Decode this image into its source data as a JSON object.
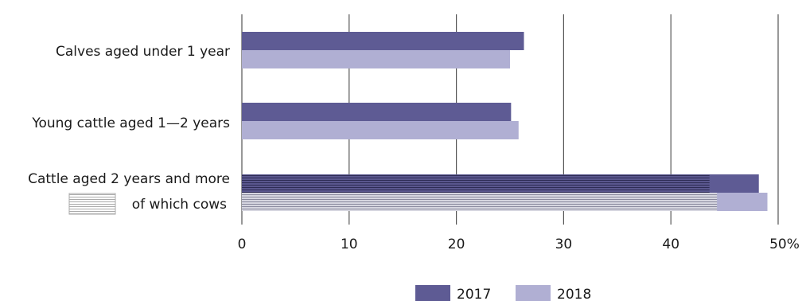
{
  "chart_data": {
    "type": "bar",
    "orientation": "horizontal",
    "categories": [
      "Calves aged under 1 year",
      "Young cattle aged 1—2 years",
      "Cattle aged 2 years and more"
    ],
    "series": [
      {
        "name": "2017",
        "values": [
          26.3,
          25.1,
          48.2
        ]
      },
      {
        "name": "2018",
        "values": [
          25.0,
          25.8,
          49.0
        ]
      }
    ],
    "sub_series": {
      "label": "of which cows",
      "category": "Cattle aged 2 years and more",
      "values": [
        43.6,
        44.3
      ]
    },
    "x_ticks": [
      "0",
      "10",
      "20",
      "30",
      "40",
      "50%"
    ],
    "xlim": [
      0,
      50
    ],
    "grid": true,
    "legend_position": "bottom-center",
    "colors": {
      "2017": "#5e5b94",
      "2018": "#b0afd3",
      "hatch_2017": "#2e2c55",
      "hatch_2018": "#8a8a9e",
      "hatch_bg_2017": "#5a578e",
      "hatch_bg_2018": "#d6d6e0"
    }
  }
}
